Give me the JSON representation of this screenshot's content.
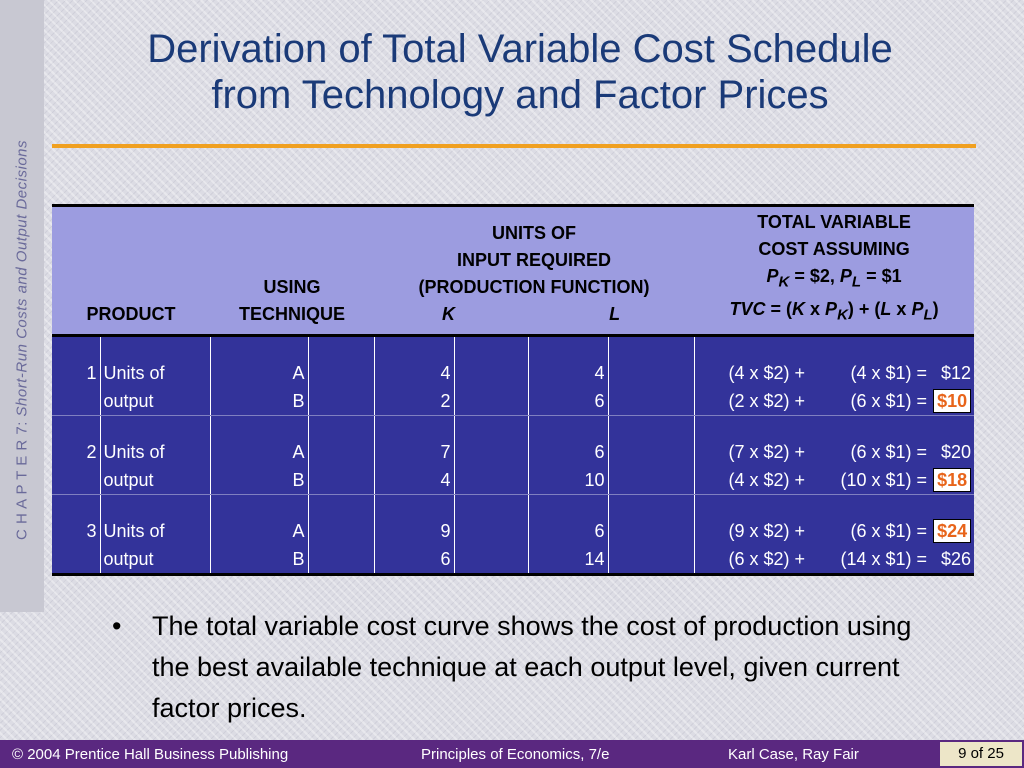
{
  "sidebar": {
    "chapter": "C H A P T E R  7:",
    "subject": "Short-Run Costs and Output Decisions"
  },
  "title": {
    "line1": "Derivation of Total Variable Cost Schedule",
    "line2": "from Technology and Factor Prices"
  },
  "table": {
    "headers": {
      "product": "PRODUCT",
      "technique_1": "USING",
      "technique_2": "TECHNIQUE",
      "units_1": "UNITS OF",
      "units_2": "INPUT REQUIRED",
      "units_3": "(PRODUCTION FUNCTION)",
      "k": "K",
      "l": "L",
      "tvc_1": "TOTAL VARIABLE",
      "tvc_2": "COST ASSUMING",
      "tvc_3": "PK = $2, PL = $1",
      "tvc_4": "TVC = (K x PK) + (L x PL)"
    },
    "rows": [
      {
        "qty": "1",
        "unit": "Units of",
        "tech": "A",
        "k": "4",
        "l": "4",
        "kc": "(4 x $2) +",
        "lc": "(4 x $1) =",
        "total": "$12",
        "highlight": false
      },
      {
        "qty": "",
        "unit": "output",
        "tech": "B",
        "k": "2",
        "l": "6",
        "kc": "(2 x $2) +",
        "lc": "(6 x $1) =",
        "total": "$10",
        "highlight": true
      },
      {
        "qty": "2",
        "unit": "Units of",
        "tech": "A",
        "k": "7",
        "l": "6",
        "kc": "(7 x $2) +",
        "lc": "(6 x $1) =",
        "total": "$20",
        "highlight": false
      },
      {
        "qty": "",
        "unit": "output",
        "tech": "B",
        "k": "4",
        "l": "10",
        "kc": "(4 x $2) +",
        "lc": "(10 x $1) =",
        "total": "$18",
        "highlight": true
      },
      {
        "qty": "3",
        "unit": "Units of",
        "tech": "A",
        "k": "9",
        "l": "6",
        "kc": "(9 x $2) +",
        "lc": "(6 x $1) =",
        "total": "$24",
        "highlight": true
      },
      {
        "qty": "",
        "unit": "output",
        "tech": "B",
        "k": "6",
        "l": "14",
        "kc": "(6 x $2) +",
        "lc": "(14 x $1) =",
        "total": "$26",
        "highlight": false
      }
    ]
  },
  "bullet": {
    "text": "The total variable cost curve shows the cost of production using the best available technique at each output level, given current factor prices."
  },
  "footer": {
    "copyright": "© 2004 Prentice Hall Business Publishing",
    "book": "Principles of Economics, 7/e",
    "authors": "Karl Case, Ray Fair",
    "page": "9 of 25"
  },
  "colors": {
    "title": "#1a3a78",
    "accent_rule": "#f0a020",
    "table_body": "#33339a",
    "table_header": "#9c9ce0",
    "highlight_text": "#e8641a",
    "footer": "#5a2880"
  }
}
